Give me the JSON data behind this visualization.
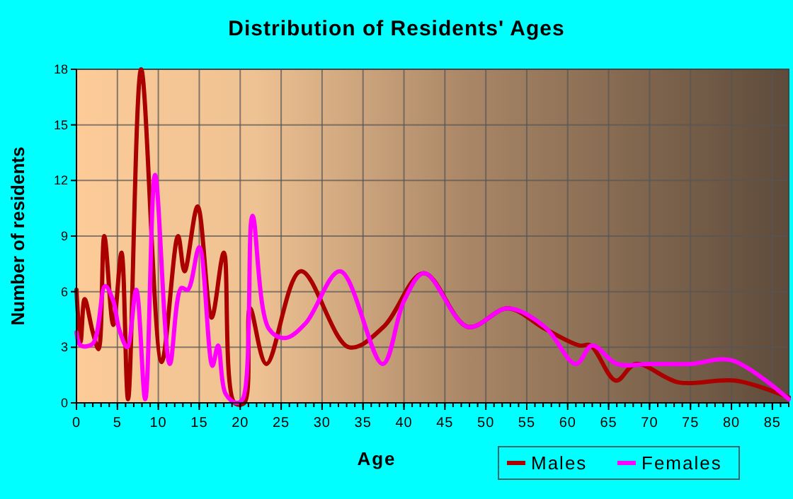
{
  "chart_data": {
    "type": "line",
    "title": "Distribution of Residents' Ages",
    "xlabel": "Age",
    "ylabel": "Number of residents",
    "xlim": [
      0,
      87
    ],
    "xticks": [
      0,
      5,
      10,
      15,
      20,
      25,
      30,
      35,
      40,
      45,
      50,
      55,
      60,
      65,
      70,
      75,
      80,
      85
    ],
    "ylim": [
      0,
      18
    ],
    "yticks": [
      0,
      3,
      6,
      9,
      12,
      15,
      18
    ],
    "grid": true,
    "legend": "bottom right",
    "line_style": "solid",
    "marker": "none",
    "series": [
      {
        "name": "Males",
        "color": "#aa0000",
        "x": [
          0,
          0.5,
          1,
          2,
          2.7,
          3.4,
          4.5,
          5.5,
          6.3,
          7.9,
          10.4,
          12.4,
          13.2,
          14.8,
          16.5,
          18,
          19.3,
          20.5,
          21.2,
          23.2,
          27.4,
          33.3,
          37.5,
          42.4,
          47.8,
          52.7,
          57.2,
          61.4,
          62.8,
          65.9,
          68.3,
          73.6,
          80.5,
          87
        ],
        "values": [
          6.1,
          3.3,
          5.6,
          3.8,
          2.9,
          9,
          4.2,
          8.1,
          0.2,
          18,
          2.2,
          9,
          7.1,
          10.6,
          4.6,
          8.1,
          0,
          0,
          5.1,
          2.1,
          7.1,
          3,
          4.1,
          7,
          4.1,
          5.1,
          4,
          3.1,
          3.1,
          1.2,
          2.1,
          1.1,
          1.2,
          0.3
        ]
      },
      {
        "name": "Females",
        "color": "#ff00ff",
        "x": [
          0,
          0.5,
          2,
          3.5,
          4.5,
          5.2,
          6.2,
          7.3,
          8.4,
          9.6,
          11.4,
          12.8,
          13.6,
          15,
          16.6,
          17.3,
          18.2,
          19.5,
          20.3,
          21.5,
          23.5,
          25.5,
          28,
          32.2,
          37.4,
          40,
          42.5,
          47.8,
          52.7,
          57.2,
          61,
          63,
          66,
          70,
          75,
          80,
          87
        ],
        "values": [
          3.8,
          3.1,
          3.2,
          6.3,
          5.5,
          4,
          3,
          6.1,
          0.2,
          12.3,
          2.1,
          6.2,
          6.1,
          8.4,
          2,
          3.1,
          0.5,
          0,
          0.2,
          10.1,
          4,
          3.5,
          4.3,
          7.1,
          2.1,
          5.5,
          7,
          4.1,
          5.1,
          4.1,
          2.1,
          3.1,
          2.1,
          2.1,
          2.1,
          2.3,
          0.2
        ]
      }
    ]
  }
}
